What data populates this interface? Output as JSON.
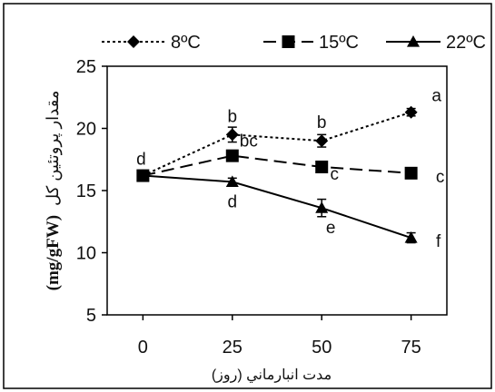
{
  "chart_data": {
    "type": "line",
    "x": [
      0,
      25,
      50,
      75
    ],
    "xlabel": "مدت انبارماني (روز)",
    "ylabel_unit": "(mg/gFW)",
    "ylabel_text": "مقدار پروتئين كل",
    "xlim": [
      -10,
      85
    ],
    "ylim": [
      5,
      25
    ],
    "xticks": [
      0,
      25,
      50,
      75
    ],
    "yticks": [
      5,
      10,
      15,
      20,
      25
    ],
    "legend_position": "top",
    "series": [
      {
        "name": "8ºC",
        "marker": "diamond",
        "dash": "dotted",
        "values": [
          16.2,
          19.5,
          19.0,
          21.3
        ],
        "errors": [
          0.3,
          0.6,
          0.5,
          0.3
        ],
        "letters": [
          "d",
          "b",
          "b",
          "a"
        ]
      },
      {
        "name": "15ºC",
        "marker": "square",
        "dash": "long-dash",
        "values": [
          16.2,
          17.8,
          16.9,
          16.4
        ],
        "errors": [
          0.3,
          0.4,
          0.3,
          0.2
        ],
        "letters": [
          "",
          "bc",
          "c",
          "c"
        ]
      },
      {
        "name": "22ºC",
        "marker": "triangle",
        "dash": "solid",
        "values": [
          16.2,
          15.7,
          13.6,
          11.2
        ],
        "errors": [
          0.3,
          0.3,
          0.7,
          0.4
        ],
        "letters": [
          "",
          "d",
          "e",
          "f"
        ]
      }
    ]
  }
}
